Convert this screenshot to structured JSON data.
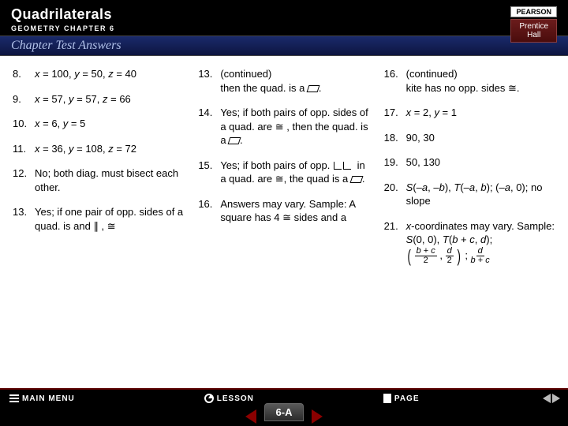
{
  "header": {
    "title": "Quadrilaterals",
    "subtitle": "GEOMETRY CHAPTER 6"
  },
  "section": "Chapter Test Answers",
  "logo": {
    "top": "PEARSON",
    "bottomL1": "Prentice",
    "bottomL2": "Hall"
  },
  "col1": [
    {
      "n": "8.",
      "t": "<span class='ital'>x</span> = 100, <span class='ital'>y</span> = 50, <span class='ital'>z</span> = 40"
    },
    {
      "n": "9.",
      "t": "<span class='ital'>x</span> = 57, <span class='ital'>y</span> =  57, <span class='ital'>z</span> = 66"
    },
    {
      "n": "10.",
      "t": "<span class='ital'>x</span> = 6, <span class='ital'>y</span> = 5"
    },
    {
      "n": "11.",
      "t": "<span class='ital'>x</span> = 36, <span class='ital'>y</span> = 108, <span class='ital'>z</span> = 72"
    },
    {
      "n": "12.",
      "t": "No; both diag. must bisect each other."
    },
    {
      "n": "13.",
      "t": "Yes; if one pair of opp. sides of a quad. is   and ∥ ,       ≅"
    }
  ],
  "col2": [
    {
      "n": "13.",
      "t": "(continued)<br>then the quad. is a <span class='psym'></span>."
    },
    {
      "n": "14.",
      "t": "Yes; if both pairs of opp. sides of a quad. are ≅ , then the quad. is a <span class='psym'></span>."
    },
    {
      "n": "15.",
      "t": "Yes; if both pairs of opp. <span class='angles'><span class='angle'></span><span class='angle'></span></span> in a quad. are ≅, the quad is a <span class='psym'></span>."
    },
    {
      "n": "16.",
      "t": "Answers may vary. Sample: A square has 4 ≅ sides and a"
    }
  ],
  "col3": [
    {
      "n": "16.",
      "t": "(continued)<br>kite has no opp. sides ≅."
    },
    {
      "n": "17.",
      "t": "<span class='ital'>x</span> = 2, <span class='ital'>y</span> = 1"
    },
    {
      "n": "18.",
      "t": "90, 30"
    },
    {
      "n": "19.",
      "t": "50, 130"
    },
    {
      "n": "20.",
      "t": "<span class='ital'>S</span>(–<span class='ital'>a</span>, –<span class='ital'>b</span>), <span class='ital'>T</span>(–<span class='ital'>a</span>, <span class='ital'>b</span>); (–<span class='ital'>a</span>, 0); no slope"
    },
    {
      "n": "21.",
      "t": "<span class='ital'>x</span>-coordinates may vary. Sample:<br><span class='ital'>S</span>(0, 0), <span class='ital'>T</span>(<span class='ital'>b</span> + <span class='ital'>c</span>, <span class='ital'>d</span>);<br><span class='paren'>(</span> <span class='frac'><span class='fn'><span class='ital'>b</span> + <span class='ital'>c</span></span><span>2</span></span> , <span class='frac'><span class='fn'><span class='ital'>d</span></span><span>2</span></span> <span class='paren'>)</span> ;  <span class='frac'><span class='fn'><span class='ital'>d</span></span><span><span class='ital'>b</span> + <span class='ital'>c</span></span></span>"
    }
  ],
  "nav": {
    "main": "MAIN MENU",
    "lesson": "LESSON",
    "page": "PAGE"
  },
  "tab": "6-A"
}
